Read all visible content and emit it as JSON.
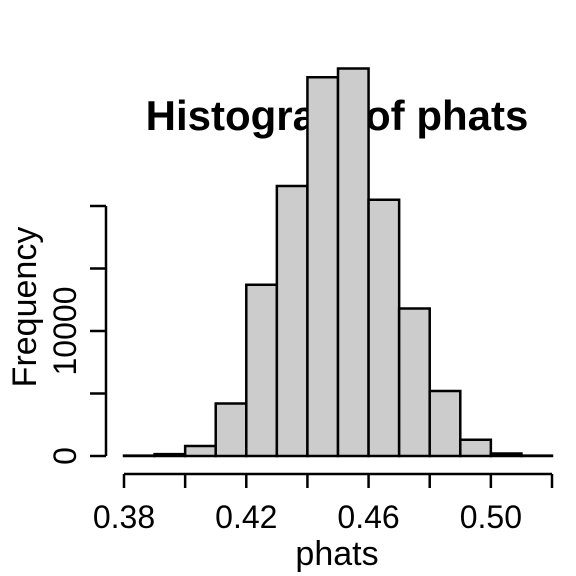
{
  "chart_data": {
    "type": "bar",
    "title": "Histogram of phats",
    "xlabel": "phats",
    "ylabel": "Frequency",
    "bin_edges": [
      0.38,
      0.39,
      0.4,
      0.41,
      0.42,
      0.43,
      0.44,
      0.45,
      0.46,
      0.47,
      0.48,
      0.49,
      0.5,
      0.51,
      0.52
    ],
    "values": [
      30,
      150,
      800,
      4200,
      13700,
      21600,
      30300,
      31000,
      20500,
      11800,
      5200,
      1300,
      200,
      30
    ],
    "xlim": [
      0.38,
      0.52
    ],
    "ylim": [
      0,
      20000
    ],
    "x_ticks": [
      0.38,
      0.4,
      0.42,
      0.44,
      0.46,
      0.48,
      0.5,
      0.52
    ],
    "x_tick_labels": [
      "0.38",
      "",
      "0.42",
      "",
      "0.46",
      "",
      "0.50",
      ""
    ],
    "y_ticks": [
      0,
      5000,
      10000,
      15000,
      20000
    ],
    "y_tick_labels": [
      "0",
      "",
      "10000",
      "",
      ""
    ],
    "grid": false,
    "colors": {
      "bar_fill": "#cccccc",
      "bar_stroke": "#000000"
    }
  }
}
